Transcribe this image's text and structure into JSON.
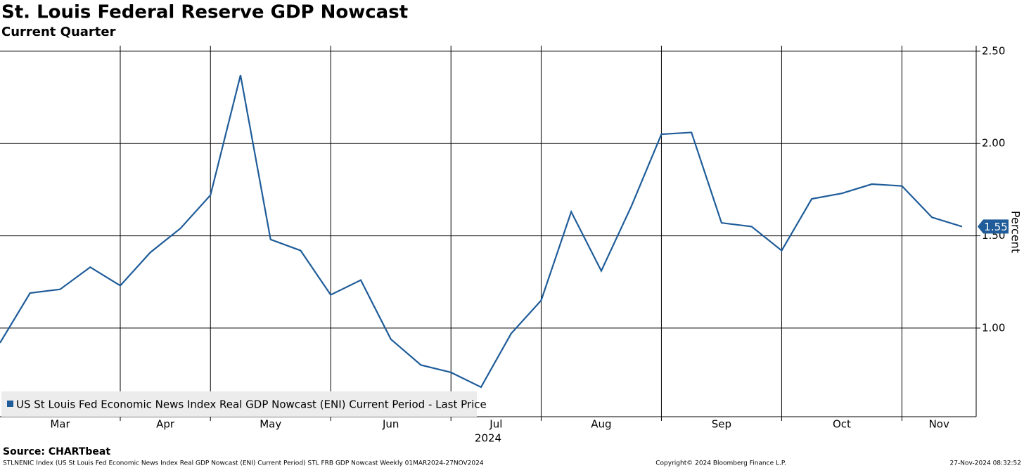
{
  "chart_data": {
    "type": "line",
    "title": "St. Louis Federal Reserve GDP Nowcast",
    "subtitle": "Current Quarter",
    "y_axis_label": "Percent",
    "x_year_label": "2024",
    "months": [
      "Mar",
      "Apr",
      "May",
      "Jun",
      "Jul",
      "Aug",
      "Sep",
      "Oct",
      "Nov"
    ],
    "categories": [
      null,
      null,
      null,
      null,
      null,
      null,
      null,
      null,
      null,
      null,
      null,
      null,
      null,
      null,
      null,
      null,
      null,
      null,
      null,
      null,
      null,
      null,
      null,
      null,
      null,
      null,
      null,
      null,
      null,
      null,
      null,
      null,
      null
    ],
    "xlim": [
      0,
      32.47
    ],
    "xticks": [
      4,
      7,
      11,
      15,
      18,
      22,
      26,
      30
    ],
    "series": [
      {
        "name": "US St Louis Fed Economic News Index Real GDP Nowcast (ENI) Current Period - Last Price",
        "color": "#1f5c99",
        "values": [
          0.92,
          1.19,
          1.21,
          1.33,
          1.23,
          1.41,
          1.54,
          1.72,
          2.37,
          1.48,
          1.42,
          1.18,
          1.26,
          0.94,
          0.8,
          0.76,
          0.68,
          0.97,
          1.15,
          1.63,
          1.31,
          1.66,
          2.05,
          2.06,
          1.57,
          1.55,
          1.42,
          1.7,
          1.73,
          1.78,
          1.77,
          1.6,
          1.55
        ]
      }
    ],
    "last_value_label": "1.55",
    "ylim": [
      0.52,
      2.53
    ],
    "yticks": [
      {
        "value": 1,
        "label": "1.00"
      },
      {
        "value": 1.5,
        "label": "1.50"
      },
      {
        "value": 2,
        "label": "2.00"
      },
      {
        "value": 2.5,
        "label": "2.50"
      }
    ],
    "grid": true,
    "legend": "lower left",
    "source": "Source: CHARTbeat",
    "footer_left": "STLNENIC Index (US St Louis Fed Economic News Index Real GDP Nowcast (ENI) Current Period) STL FRB GDP Nowcast  Weekly 01MAR2024-27NOV2024",
    "footer_center": "Copyright© 2024 Bloomberg Finance L.P.",
    "footer_right": "27-Nov-2024 08:32:52"
  }
}
